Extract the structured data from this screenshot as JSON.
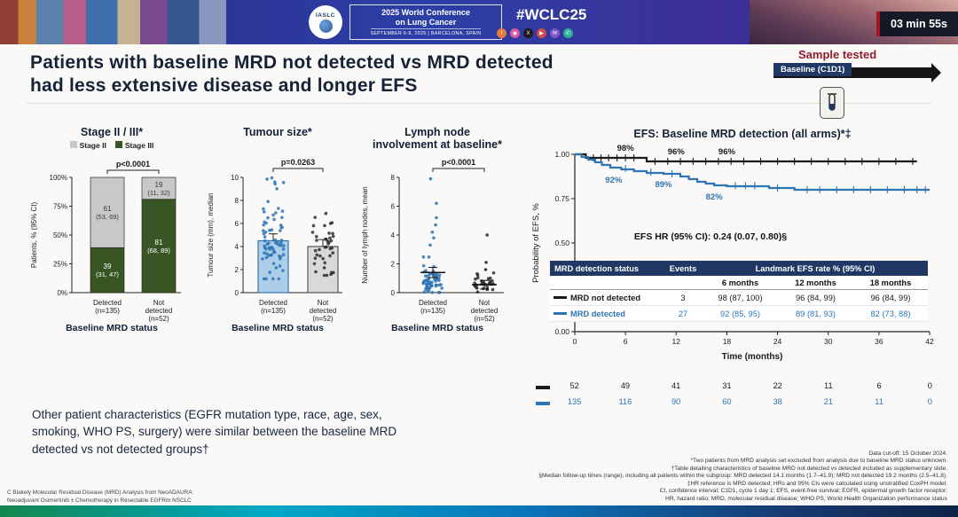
{
  "banner": {
    "logo_text": "IASLC",
    "conf_line1": "2025 World Conference",
    "conf_line2": "on Lung Cancer",
    "conf_dates": "SEPTEMBER 6-9, 2025  |  BARCELONA, SPAIN",
    "hashtag": "#WCLC25",
    "timer": "03 min 55s",
    "social": [
      {
        "name": "facebook",
        "bg": "#e8793c",
        "glyph": "f"
      },
      {
        "name": "instagram",
        "bg": "#d85a9e",
        "glyph": "◉"
      },
      {
        "name": "x",
        "bg": "#1b1b1b",
        "glyph": "X"
      },
      {
        "name": "youtube",
        "bg": "#cf4a4a",
        "glyph": "▶"
      },
      {
        "name": "email",
        "bg": "#7e57c2",
        "glyph": "✉"
      },
      {
        "name": "whatsapp",
        "bg": "#2fae9b",
        "glyph": "✆"
      }
    ]
  },
  "title": {
    "line1": "Patients with baseline MRD not detected vs MRD detected",
    "line2": "had less extensive disease and longer EFS"
  },
  "sample": {
    "label": "Sample tested",
    "baseline": "Baseline (C1D1)"
  },
  "chart_data": [
    {
      "id": "stage",
      "type": "bar",
      "subtype": "stacked-percent",
      "title": "Stage II / III*",
      "p_value": "p<0.0001",
      "ylabel": "Patients, % (95% CI)",
      "xlabel": "Baseline MRD status",
      "ylim": [
        0,
        100
      ],
      "yticks": [
        0,
        25,
        50,
        75,
        100
      ],
      "ytick_labels": [
        "0%",
        "25%",
        "50%",
        "75%",
        "100%"
      ],
      "categories": [
        [
          "Detected",
          "(n=135)"
        ],
        [
          "Not",
          "detected",
          "(n=52)"
        ]
      ],
      "series": [
        {
          "name": "Stage II",
          "color": "#c8c8c8",
          "text_color": "#3a3a3a",
          "values": [
            61,
            19
          ],
          "labels": [
            [
              "61",
              "(53, 69)"
            ],
            [
              "19",
              "(11, 32)"
            ]
          ]
        },
        {
          "name": "Stage III",
          "color": "#375623",
          "text_color": "#ffffff",
          "values": [
            39,
            81
          ],
          "labels": [
            [
              "39",
              "(31, 47)"
            ],
            [
              "81",
              "(68, 89)"
            ]
          ]
        }
      ]
    },
    {
      "id": "tumour",
      "type": "scatter",
      "subtype": "bar-scatter",
      "title": "Tumour size*",
      "p_value": "p=0.0263",
      "ylabel": "Tumour size (mm), median",
      "xlabel": "Baseline MRD status",
      "ylim": [
        0,
        10
      ],
      "yticks": [
        0,
        2,
        4,
        6,
        8,
        10
      ],
      "categories": [
        [
          "Detected",
          "(n=135)"
        ],
        [
          "Not",
          "detected",
          "(n=52)"
        ]
      ],
      "groups": [
        {
          "label": "Detected (n=135)",
          "median": 4.5,
          "whisker_hi": 5.1,
          "bar_color": "#aecde9",
          "bar_stroke": "#2e75b6",
          "dot_color": "#2e75b6",
          "n_dots": 72,
          "center": 4.4,
          "sd": 1.6,
          "spread": [
            1.2,
            10
          ]
        },
        {
          "label": "Not detected (n=52)",
          "median": 4.0,
          "whisker_hi": 4.6,
          "bar_color": "#d9d9d9",
          "bar_stroke": "#555555",
          "dot_color": "#2b2b2b",
          "n_dots": 40,
          "center": 3.9,
          "sd": 1.2,
          "spread": [
            1.5,
            7
          ]
        }
      ]
    },
    {
      "id": "lymph",
      "type": "scatter",
      "subtype": "mean-scatter",
      "title_lines": [
        "Lymph node",
        "involvement at baseline*"
      ],
      "p_value": "p<0.0001",
      "ylabel": "Number of lymph nodes, mean",
      "xlabel": "Baseline MRD status",
      "ylim": [
        0,
        8
      ],
      "yticks": [
        0,
        2,
        4,
        6,
        8
      ],
      "categories": [
        [
          "Detected",
          "(n=135)"
        ],
        [
          "Not",
          "detected",
          "(n=52)"
        ]
      ],
      "groups": [
        {
          "label": "Detected (n=135)",
          "mean": 1.4,
          "err": 0.35,
          "dot_color": "#2e75b6",
          "n_dots": 62,
          "center": 0.7,
          "sd": 0.75,
          "spread": [
            0,
            3.2
          ],
          "outliers": [
            3.3,
            3.8,
            4.2,
            4.7,
            5.2,
            6.2,
            7.9
          ]
        },
        {
          "label": "Not detected (n=52)",
          "mean": 0.55,
          "err": 0.3,
          "dot_color": "#2b2b2b",
          "n_dots": 30,
          "center": 0.35,
          "sd": 0.45,
          "spread": [
            0,
            1.4
          ],
          "outliers": [
            1.6,
            2.1,
            4.0
          ]
        }
      ]
    },
    {
      "id": "km",
      "type": "line",
      "subtype": "kaplan-meier",
      "title": "EFS: Baseline MRD detection (all arms)*‡",
      "ylabel": "Probability of EFS, %",
      "xlabel": "Time (months)",
      "xlim": [
        0,
        42
      ],
      "ylim": [
        0,
        1
      ],
      "xticks": [
        0,
        6,
        12,
        18,
        24,
        30,
        36,
        42
      ],
      "ytick_labels": [
        "0.00",
        "0.25",
        "0.50",
        "0.75",
        "1.00"
      ],
      "hr_text": "EFS HR (95% CI): 0.24 (0.07, 0.80)§",
      "series": [
        {
          "name": "MRD not detected",
          "color": "#1b1b1b",
          "steps": [
            [
              0,
              1.0
            ],
            [
              1.3,
              1.0
            ],
            [
              1.3,
              0.98
            ],
            [
              8.5,
              0.98
            ],
            [
              8.5,
              0.96
            ],
            [
              40.5,
              0.96
            ]
          ],
          "censors": [
            [
              2.2,
              0.98
            ],
            [
              3.1,
              0.98
            ],
            [
              4,
              0.98
            ],
            [
              5,
              0.98
            ],
            [
              6,
              0.98
            ],
            [
              7,
              0.98
            ],
            [
              9.5,
              0.96
            ],
            [
              11,
              0.96
            ],
            [
              12.5,
              0.96
            ],
            [
              14,
              0.96
            ],
            [
              15.5,
              0.96
            ],
            [
              17,
              0.96
            ],
            [
              18.5,
              0.96
            ],
            [
              20,
              0.96
            ],
            [
              22,
              0.96
            ],
            [
              24,
              0.96
            ],
            [
              26,
              0.96
            ],
            [
              28,
              0.96
            ],
            [
              30,
              0.96
            ],
            [
              32,
              0.96
            ],
            [
              34,
              0.96
            ],
            [
              36,
              0.96
            ],
            [
              38,
              0.96
            ],
            [
              40,
              0.96
            ]
          ],
          "annotations": [
            {
              "x": 6,
              "y": 0.98,
              "label": "98%",
              "dy": -8
            },
            {
              "x": 12,
              "y": 0.96,
              "label": "96%",
              "dy": -8
            },
            {
              "x": 18,
              "y": 0.96,
              "label": "96%",
              "dy": -8
            }
          ]
        },
        {
          "name": "MRD detected",
          "color": "#2e75b6",
          "steps": [
            [
              0,
              1.0
            ],
            [
              0.8,
              1.0
            ],
            [
              0.8,
              0.985
            ],
            [
              1.6,
              0.985
            ],
            [
              1.6,
              0.97
            ],
            [
              2.4,
              0.97
            ],
            [
              2.4,
              0.955
            ],
            [
              3.2,
              0.955
            ],
            [
              3.2,
              0.94
            ],
            [
              4.2,
              0.94
            ],
            [
              4.2,
              0.925
            ],
            [
              5.5,
              0.925
            ],
            [
              5.5,
              0.915
            ],
            [
              7,
              0.915
            ],
            [
              7,
              0.905
            ],
            [
              8.5,
              0.905
            ],
            [
              8.5,
              0.895
            ],
            [
              10.5,
              0.895
            ],
            [
              10.5,
              0.89
            ],
            [
              12.5,
              0.89
            ],
            [
              12.5,
              0.875
            ],
            [
              13.5,
              0.875
            ],
            [
              13.5,
              0.86
            ],
            [
              14.5,
              0.86
            ],
            [
              14.5,
              0.845
            ],
            [
              15.5,
              0.845
            ],
            [
              15.5,
              0.835
            ],
            [
              16.5,
              0.835
            ],
            [
              16.5,
              0.825
            ],
            [
              18,
              0.825
            ],
            [
              18,
              0.82
            ],
            [
              23,
              0.82
            ],
            [
              23,
              0.81
            ],
            [
              26,
              0.81
            ],
            [
              26,
              0.8
            ],
            [
              42,
              0.8
            ]
          ],
          "censors": [
            [
              6,
              0.92
            ],
            [
              9,
              0.9
            ],
            [
              11.5,
              0.89
            ],
            [
              19,
              0.823
            ],
            [
              20.2,
              0.823
            ],
            [
              21.3,
              0.823
            ],
            [
              24,
              0.81
            ],
            [
              27.5,
              0.8
            ],
            [
              29,
              0.8
            ],
            [
              31,
              0.8
            ],
            [
              33,
              0.8
            ],
            [
              35,
              0.8
            ],
            [
              37,
              0.8
            ],
            [
              39,
              0.8
            ],
            [
              40.5,
              0.8
            ],
            [
              41.5,
              0.8
            ]
          ],
          "annotations": [
            {
              "x": 4.6,
              "y": 0.92,
              "label": "92%",
              "dy": 16
            },
            {
              "x": 10.5,
              "y": 0.895,
              "label": "89%",
              "dy": 16
            },
            {
              "x": 16.5,
              "y": 0.825,
              "label": "82%",
              "dy": 16
            }
          ]
        }
      ]
    }
  ],
  "km_table": {
    "col1": "MRD detection status",
    "col2": "Events",
    "col3": "Landmark EFS rate % (95% CI)",
    "sub": [
      "6 months",
      "12 months",
      "18 months"
    ],
    "rows": [
      {
        "label": "MRD not detected",
        "color": "#1b1b1b",
        "events": "3",
        "v6": "98 (87, 100)",
        "v12": "96 (84, 99)",
        "v18": "96 (84, 99)"
      },
      {
        "label": "MRD detected",
        "color": "#2e75b6",
        "events": "27",
        "v6": "92 (85, 95)",
        "v12": "89 (81, 93)",
        "v18": "82 (73, 88)"
      }
    ]
  },
  "at_risk": {
    "rows": [
      {
        "name": "MRD not detected",
        "color": "#1b1b1b",
        "values": [
          "52",
          "49",
          "41",
          "31",
          "22",
          "11",
          "6",
          "0"
        ]
      },
      {
        "name": "MRD detected",
        "color": "#2e75b6",
        "values": [
          "135",
          "116",
          "90",
          "60",
          "38",
          "21",
          "11",
          "0"
        ]
      }
    ]
  },
  "summary": "Other patient characteristics (EGFR mutation type, race, age, sex, smoking, WHO PS, surgery) were similar between the baseline MRD detected vs not detected groups†",
  "footnotes": [
    "Data cut-off: 15 October 2024.",
    "*Two patients from MRD analysis set excluded from analysis due to baseline MRD status unknown.",
    "†Table detailing characteristics of baseline MRD not detected vs detected included as supplementary slide.",
    "§Median follow-up times (range), including all patients within the subgroup: MRD detected 14.1 months (1.7–41.9); MRD not detected 19.2 months (2.5–41.8).",
    "‡HR reference is MRD detected; HRs and 95% CIs were calculated using unstratified CoxPH model.",
    "CI, confidence interval; C1D1, cycle 1 day 1; EFS, event-free survival; EGFR, epidermal growth factor receptor;",
    "HR, hazard ratio; MRD, molecular residual disease; WHO PS, World Health Organization performance status"
  ],
  "credit": [
    "C Blakely  Molecular Residual Disease (MRD) Analysis from NeoADAURA:",
    "Neoadjuvant Osimertinib ± Chemotherapy in Resectable EGFRm NSCLC"
  ],
  "colors": {
    "navy": "#1f3864",
    "km_blue": "#2e75b6",
    "stage_green": "#375623",
    "stage_gray": "#c8c8c8",
    "maroon": "#8a1e2d"
  }
}
